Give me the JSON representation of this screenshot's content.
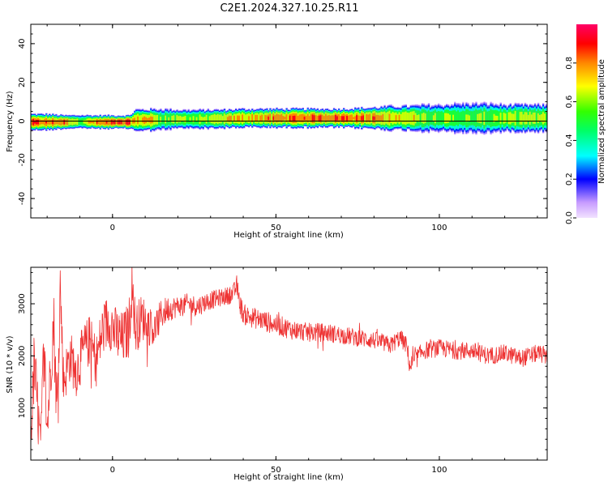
{
  "title": "C2E1.2024.327.10.25.R11",
  "chart_data": [
    {
      "type": "heatmap",
      "xlabel": "Height of straight line (km)",
      "ylabel": "Frequency (Hz)",
      "xlim": [
        -25,
        133
      ],
      "ylim": [
        -50,
        50
      ],
      "xticks": [
        0,
        50,
        100
      ],
      "yticks": [
        -40,
        -20,
        0,
        20,
        40
      ],
      "colorbar": {
        "label": "Normalized spectral amplitude",
        "range": [
          0,
          1
        ],
        "ticks": [
          0.0,
          0.2,
          0.4,
          0.6,
          0.8
        ],
        "tick_labels": [
          "0.0",
          "0.2",
          "0.4",
          "0.6",
          "0.8"
        ]
      },
      "band": {
        "x": [
          -25,
          -20,
          -15,
          -10,
          -5,
          0,
          5,
          7,
          10,
          15,
          20,
          25,
          30,
          35,
          40,
          50,
          60,
          70,
          80,
          85,
          90,
          95,
          100,
          105,
          110,
          115,
          120,
          125,
          130,
          133
        ],
        "center_hz": [
          -0.5,
          -0.5,
          -0.5,
          -0.3,
          -0.5,
          -0.5,
          -0.5,
          0.5,
          0.5,
          0.8,
          1,
          1,
          1,
          1.2,
          1.5,
          1.5,
          1.5,
          1.5,
          1.5,
          1.5,
          1.5,
          1.5,
          1.5,
          1.5,
          1.5,
          1.5,
          1.5,
          1.5,
          1.5,
          1.5
        ],
        "halfwidth_hz": [
          3,
          3,
          2.5,
          2.5,
          2.5,
          2.5,
          2.5,
          4,
          4,
          4,
          3.5,
          3.5,
          3.5,
          3.5,
          3.5,
          3.5,
          3.5,
          3.5,
          4,
          4.5,
          4.5,
          5,
          5,
          5.5,
          5.5,
          5.5,
          5,
          5,
          5,
          5
        ],
        "peak_amplitude": [
          0.95,
          0.9,
          0.95,
          0.7,
          0.9,
          0.95,
          0.95,
          0.8,
          0.9,
          0.7,
          0.7,
          0.7,
          0.75,
          0.8,
          0.85,
          0.9,
          0.95,
          0.95,
          0.9,
          0.8,
          0.85,
          0.7,
          0.7,
          0.65,
          0.65,
          0.7,
          0.7,
          0.75,
          0.7,
          0.7
        ]
      }
    },
    {
      "type": "line",
      "xlabel": "Height of straight line (km)",
      "ylabel": "SNR (10 * v/v)",
      "xlim": [
        -25,
        133
      ],
      "ylim": [
        0,
        3700
      ],
      "xticks": [
        0,
        50,
        100
      ],
      "yticks": [
        1000,
        2000,
        3000
      ],
      "color": "#ee3333",
      "series": [
        {
          "x": [
            -25,
            -24,
            -23,
            -22,
            -21,
            -20,
            -19,
            -18,
            -17,
            -16,
            -15,
            -13,
            -11,
            -9,
            -7,
            -5,
            -3,
            -1,
            1,
            3,
            5,
            6,
            7,
            9,
            11,
            13,
            15,
            17,
            20,
            23,
            26,
            29,
            32,
            35,
            37,
            38,
            39,
            40,
            42,
            45,
            50,
            55,
            60,
            65,
            70,
            75,
            80,
            85,
            88,
            90,
            91,
            95,
            100,
            105,
            110,
            115,
            120,
            125,
            130,
            133
          ],
          "values": [
            400,
            1800,
            1000,
            300,
            2200,
            600,
            1700,
            2700,
            900,
            3350,
            1500,
            2000,
            1700,
            2100,
            2300,
            1900,
            2500,
            2700,
            2400,
            2300,
            2500,
            3450,
            2500,
            2750,
            2600,
            2500,
            2800,
            2900,
            2950,
            3000,
            2950,
            3050,
            3100,
            3150,
            3200,
            3350,
            3000,
            2800,
            2750,
            2700,
            2600,
            2500,
            2450,
            2450,
            2400,
            2350,
            2300,
            2200,
            2350,
            2200,
            1800,
            2100,
            2150,
            2100,
            2100,
            2000,
            2050,
            1950,
            2050,
            2000
          ],
          "noise": [
            300,
            700,
            700,
            300,
            700,
            600,
            600,
            700,
            600,
            600,
            500,
            500,
            500,
            500,
            500,
            500,
            550,
            550,
            550,
            550,
            550,
            600,
            500,
            450,
            400,
            350,
            300,
            250,
            200,
            200,
            200,
            180,
            170,
            170,
            180,
            200,
            200,
            200,
            200,
            200,
            200,
            190,
            180,
            180,
            170,
            170,
            170,
            170,
            170,
            170,
            200,
            170,
            170,
            170,
            170,
            170,
            170,
            170,
            170,
            170
          ]
        }
      ]
    }
  ]
}
